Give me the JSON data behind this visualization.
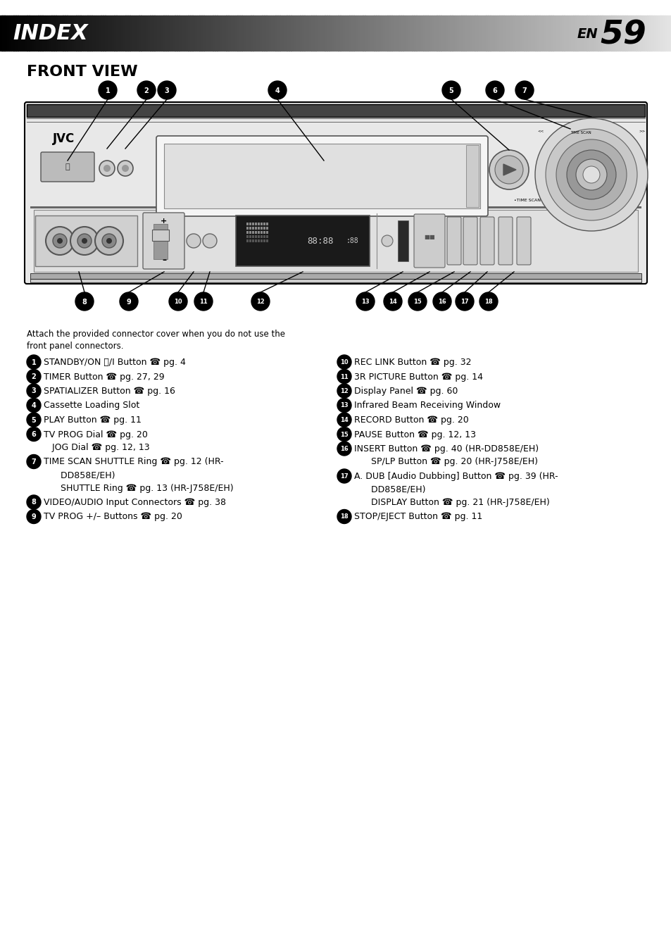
{
  "bg_color": "#ffffff",
  "header_text": "INDEX",
  "header_num": "59",
  "section_title": "FRONT VIEW",
  "attach_note_line1": "Attach the provided connector cover when you do not use the",
  "attach_note_line2": "front panel connectors.",
  "phone_char": "☎",
  "power_char": "⏻",
  "minus_char": "–",
  "left_items": [
    {
      "num": "1",
      "lines": [
        "STANDBY/ON ⏻/I Button ☎ pg. 4"
      ]
    },
    {
      "num": "2",
      "lines": [
        "TIMER Button ☎ pg. 27, 29"
      ]
    },
    {
      "num": "3",
      "lines": [
        "SPATIALIZER Button ☎ pg. 16"
      ]
    },
    {
      "num": "4",
      "lines": [
        "Cassette Loading Slot"
      ]
    },
    {
      "num": "5",
      "lines": [
        "PLAY Button ☎ pg. 11"
      ]
    },
    {
      "num": "6",
      "lines": [
        "TV PROG Dial ☎ pg. 20",
        "   JOG Dial ☎ pg. 12, 13"
      ]
    },
    {
      "num": "7",
      "lines": [
        "TIME SCAN SHUTTLE Ring ☎ pg. 12 (HR-",
        "      DD858E/EH)",
        "      SHUTTLE Ring ☎ pg. 13 (HR-J758E/EH)"
      ]
    },
    {
      "num": "8",
      "lines": [
        "VIDEO/AUDIO Input Connectors ☎ pg. 38"
      ]
    },
    {
      "num": "9",
      "lines": [
        "TV PROG +/– Buttons ☎ pg. 20"
      ]
    }
  ],
  "right_items": [
    {
      "num": "10",
      "lines": [
        "REC LINK Button ☎ pg. 32"
      ]
    },
    {
      "num": "11",
      "lines": [
        "3R PICTURE Button ☎ pg. 14"
      ]
    },
    {
      "num": "12",
      "lines": [
        "Display Panel ☎ pg. 60"
      ]
    },
    {
      "num": "13",
      "lines": [
        "Infrared Beam Receiving Window"
      ]
    },
    {
      "num": "14",
      "lines": [
        "RECORD Button ☎ pg. 20"
      ]
    },
    {
      "num": "15",
      "lines": [
        "PAUSE Button ☎ pg. 12, 13"
      ]
    },
    {
      "num": "16",
      "lines": [
        "INSERT Button ☎ pg. 40 (HR-DD858E/EH)",
        "      SP/LP Button ☎ pg. 20 (HR-J758E/EH)"
      ]
    },
    {
      "num": "17",
      "lines": [
        "A. DUB [Audio Dubbing] Button ☎ pg. 39 (HR-",
        "      DD858E/EH)",
        "      DISPLAY Button ☎ pg. 21 (HR-J758E/EH)"
      ]
    },
    {
      "num": "18",
      "lines": [
        "STOP/EJECT Button ☎ pg. 11"
      ]
    }
  ]
}
